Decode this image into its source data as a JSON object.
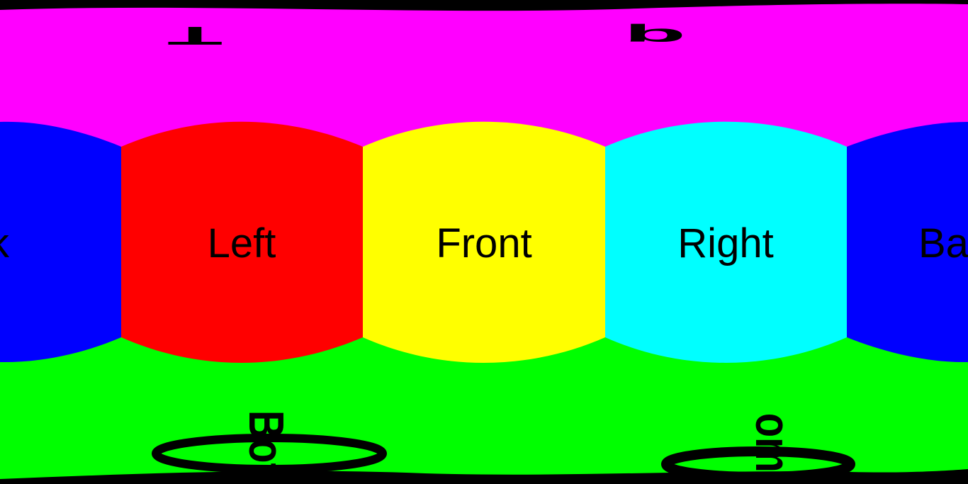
{
  "faces": {
    "back": {
      "label": "Back",
      "color": "#0000FF"
    },
    "left": {
      "label": "Left",
      "color": "#FF0000"
    },
    "front": {
      "label": "Front",
      "color": "#FFFF00"
    },
    "right": {
      "label": "Right",
      "color": "#00FFFF"
    },
    "top": {
      "label": "Top",
      "color": "#FF00FF"
    },
    "bottom": {
      "label": "Bottom",
      "color": "#00FF00"
    }
  },
  "warped_text": {
    "top_left": "T",
    "top_right": "p",
    "bottom_left": "Bot",
    "bottom_right": "om"
  }
}
